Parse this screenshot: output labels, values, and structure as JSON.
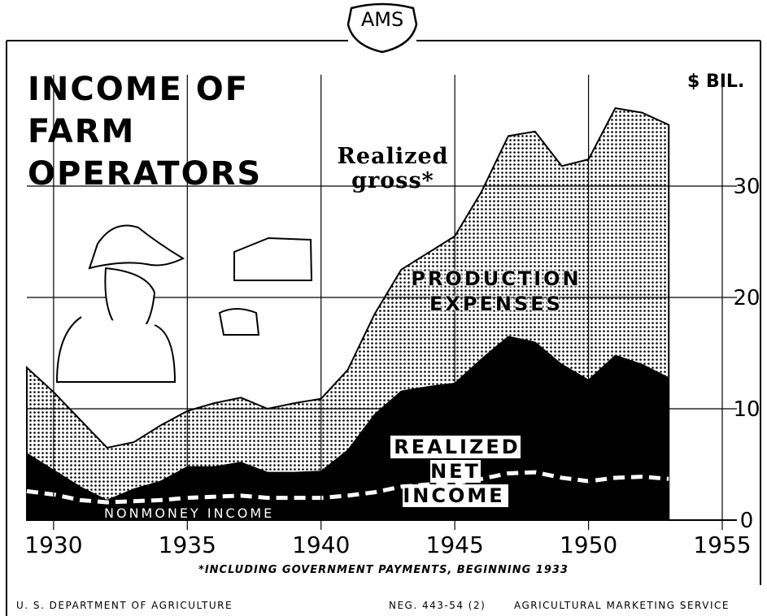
{
  "chart_data": {
    "type": "area",
    "badge": "AMS",
    "title": "INCOME OF FARM OPERATORS",
    "y_unit": "$ BIL.",
    "annotation": "PRODUCTION EXPENSES",
    "footnote": "*INCLUDING GOVERNMENT PAYMENTS, BEGINNING 1933",
    "footer_left": "U. S. DEPARTMENT OF AGRICULTURE",
    "footer_middle": "NEG. 443-54 (2)",
    "footer_right": "AGRICULTURAL MARKETING SERVICE",
    "x": [
      1929,
      1930,
      1931,
      1932,
      1933,
      1934,
      1935,
      1936,
      1937,
      1938,
      1939,
      1940,
      1941,
      1942,
      1943,
      1944,
      1945,
      1946,
      1947,
      1948,
      1949,
      1950,
      1951,
      1952,
      1953
    ],
    "series": [
      {
        "name": "Realized gross*",
        "color": "#000000",
        "values": [
          13.7,
          11.5,
          9,
          6.5,
          7,
          8.5,
          9.8,
          10.5,
          11,
          10,
          10.5,
          10.9,
          13.5,
          18.5,
          22.5,
          24,
          25.5,
          29.5,
          34.5,
          34.9,
          31.8,
          32.4,
          37,
          36.6,
          35.5
        ]
      },
      {
        "name": "REALIZED NET INCOME",
        "color": "#000000",
        "values": [
          6,
          4.5,
          3,
          1.8,
          2.8,
          3.5,
          4.8,
          4.8,
          5.2,
          4.3,
          4.3,
          4.4,
          6.3,
          9.5,
          11.6,
          12,
          12.3,
          14.5,
          16.5,
          16,
          14,
          12.6,
          14.8,
          14,
          12.8
        ]
      },
      {
        "name": "NONMONEY INCOME",
        "color": "#ffffff",
        "values": [
          2.6,
          2.3,
          1.8,
          1.6,
          1.7,
          1.8,
          2,
          2.1,
          2.2,
          2,
          2,
          2,
          2.2,
          2.5,
          3,
          3.2,
          3.3,
          3.7,
          4.2,
          4.3,
          3.8,
          3.5,
          3.8,
          3.9,
          3.7
        ]
      }
    ],
    "xlim": [
      1929,
      1955
    ],
    "xticks": [
      1930,
      1935,
      1940,
      1945,
      1950,
      1955
    ],
    "ylim": [
      0,
      40
    ],
    "yticks": [
      0,
      10,
      20,
      30
    ],
    "grid": true
  }
}
